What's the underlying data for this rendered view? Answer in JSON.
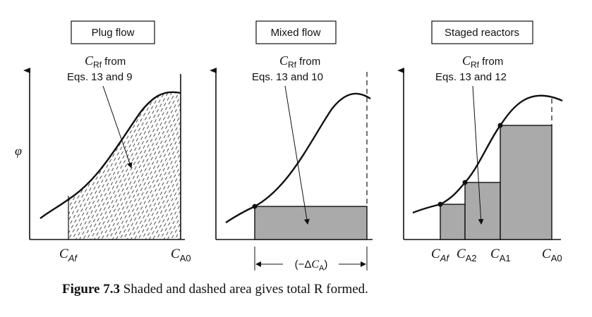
{
  "panels": [
    {
      "title": "Plug flow",
      "annot_sym": "C",
      "annot_sub": "Rf",
      "annot_rest": " from",
      "annot_line2": "Eqs. 13 and 9"
    },
    {
      "title": "Mixed flow",
      "annot_sym": "C",
      "annot_sub": "Rf",
      "annot_rest": " from",
      "annot_line2": "Eqs. 13 and 10"
    },
    {
      "title": "Staged reactors",
      "annot_sym": "C",
      "annot_sub": "Rf",
      "annot_rest": " from",
      "annot_line2": "Eqs. 13 and 12"
    }
  ],
  "y_axis_symbol": "φ",
  "labels": {
    "p1_x1": {
      "sym": "C",
      "sub": "Af"
    },
    "p1_x2": {
      "sym": "C",
      "sub": "A0"
    },
    "p2_delta_open": "(−Δ",
    "p2_delta_sym": "C",
    "p2_delta_sub": "A",
    "p2_delta_close": ")",
    "p3_x1": {
      "sym": "C",
      "sub": "Af"
    },
    "p3_x2": {
      "sym": "C",
      "sub": "A2"
    },
    "p3_x3": {
      "sym": "C",
      "sub": "A1"
    },
    "p3_x4": {
      "sym": "C",
      "sub": "A0"
    }
  },
  "caption": {
    "label": "Figure 7.3",
    "text": " Shaded and dashed area gives total R formed."
  }
}
